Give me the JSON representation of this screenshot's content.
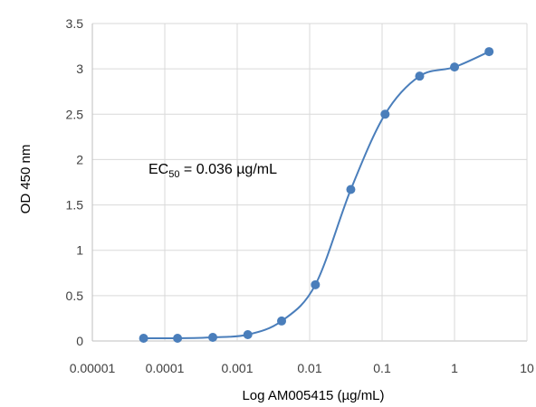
{
  "chart_data": {
    "type": "scatter",
    "title": "",
    "xlabel": "Log AM005415 (µg/mL)",
    "ylabel": "OD 450 nm",
    "x_scale": "log",
    "xlim": [
      1e-05,
      10
    ],
    "ylim": [
      0,
      3.5
    ],
    "x_tick_labels": [
      "0.00001",
      "0.0001",
      "0.001",
      "0.01",
      "0.1",
      "1",
      "10"
    ],
    "x_tick_values": [
      1e-05,
      0.0001,
      0.001,
      0.01,
      0.1,
      1,
      10
    ],
    "y_tick_labels": [
      "0",
      "0.5",
      "1",
      "1.5",
      "2",
      "2.5",
      "3",
      "3.5"
    ],
    "y_tick_values": [
      0,
      0.5,
      1,
      1.5,
      2,
      2.5,
      3,
      3.5
    ],
    "grid": true,
    "legend": "none",
    "annotation": {
      "prefix": "EC",
      "subscript": "50",
      "suffix": " = 0.036 µg/mL"
    },
    "series": [
      {
        "x": [
          5.1e-05,
          0.00015,
          0.00046,
          0.0014,
          0.0041,
          0.012,
          0.037,
          0.11,
          0.33,
          1.0,
          3.0
        ],
        "y": [
          0.03,
          0.03,
          0.04,
          0.07,
          0.22,
          0.62,
          1.67,
          2.5,
          2.92,
          3.02,
          3.19
        ]
      }
    ],
    "colors": {
      "series": "#4a7ebb",
      "grid": "#d9d9d9",
      "axis": "#bfbfbf"
    }
  }
}
